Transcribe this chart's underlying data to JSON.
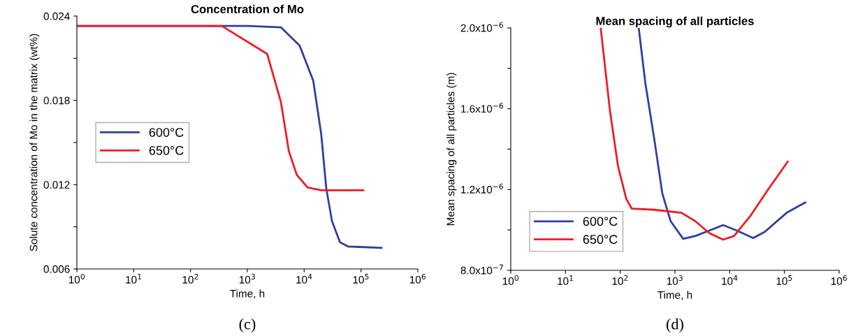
{
  "chart_data": [
    {
      "type": "line",
      "title": "Concentration of Mo",
      "xlabel": "Time, h",
      "ylabel": "Solute concentration of Mo in the matrix (wt%)",
      "log": "x",
      "xlim": [
        1,
        1000000
      ],
      "xticks": [
        {
          "value": 1,
          "label": "10$^{0}$"
        },
        {
          "value": 10,
          "label": "10$^{1}$"
        },
        {
          "value": 100,
          "label": "10$^{2}$"
        },
        {
          "value": 1000,
          "label": "10$^{3}$"
        },
        {
          "value": 10000,
          "label": "10$^{4}$"
        },
        {
          "value": 100000,
          "label": "10$^{5}$"
        },
        {
          "value": 1000000,
          "label": "10$^{6}$"
        }
      ],
      "ylim": [
        0.006,
        0.024
      ],
      "yticks": [
        {
          "value": 0.006,
          "label": "0.006"
        },
        {
          "value": 0.009,
          "label": null
        },
        {
          "value": 0.012,
          "label": "0.012"
        },
        {
          "value": 0.015,
          "label": null
        },
        {
          "value": 0.018,
          "label": "0.018"
        },
        {
          "value": 0.021,
          "label": null
        },
        {
          "value": 0.024,
          "label": "0.024"
        }
      ],
      "grid": false,
      "legend": "left",
      "marker": "none",
      "line_style": "solid",
      "series": [
        {
          "name": "600°C",
          "color": "#2e3f9e",
          "x": [
            1,
            1000,
            3890,
            8318,
            14450,
            19950,
            24550,
            30900,
            42660,
            58880,
            230000
          ],
          "values": [
            0.0233,
            0.0233,
            0.0232,
            0.0219,
            0.0194,
            0.0156,
            0.0117,
            0.0094,
            0.0079,
            0.0076,
            0.0075
          ]
        },
        {
          "name": "650°C",
          "color": "#ee1c25",
          "x": [
            1,
            355,
            2239,
            3890,
            5370,
            7413,
            11480,
            20000,
            110000
          ],
          "values": [
            0.0233,
            0.0233,
            0.0213,
            0.0179,
            0.0144,
            0.0127,
            0.0118,
            0.0116,
            0.0116
          ]
        }
      ],
      "annotations": [
        "(c)"
      ]
    },
    {
      "type": "line",
      "title": "Mean spacing of all particles",
      "xlabel": "Time, h",
      "ylabel": "Mean spacing of all particles (m)",
      "log": "x",
      "xlim": [
        1,
        1000000
      ],
      "xticks": [
        {
          "value": 1,
          "label": "10$^{0}$"
        },
        {
          "value": 10,
          "label": "10$^{1}$"
        },
        {
          "value": 100,
          "label": "10$^{2}$"
        },
        {
          "value": 1000,
          "label": "10$^{3}$"
        },
        {
          "value": 10000,
          "label": "10$^{4}$"
        },
        {
          "value": 100000,
          "label": "10$^{5}$"
        },
        {
          "value": 1000000,
          "label": "10$^{6}$"
        }
      ],
      "ylim": [
        8e-07,
        2e-06
      ],
      "yticks": [
        {
          "value": 8e-07,
          "label": "8.0x10$^{−7}$"
        },
        {
          "value": 1e-06,
          "label": null
        },
        {
          "value": 1.2e-06,
          "label": "1.2x10$^{−6}$"
        },
        {
          "value": 1.4e-06,
          "label": null
        },
        {
          "value": 1.6e-06,
          "label": "1.6x10$^{−6}$"
        },
        {
          "value": 1.8e-06,
          "label": null
        },
        {
          "value": 2e-06,
          "label": "2.0x10$^{−6}$"
        }
      ],
      "grid": false,
      "legend": "lower left",
      "marker": "none",
      "line_style": "solid",
      "series": [
        {
          "name": "600°C",
          "color": "#2e3f9e",
          "x": [
            218,
            288,
            417,
            589,
            832,
            1413,
            2344,
            4266,
            7586,
            13490,
            26920,
            43650,
            110000,
            240000
          ],
          "values": [
            2e-06,
            1.727e-06,
            1.454e-06,
            1.18e-06,
            1.044e-06,
            9.56e-07,
            9.7e-07,
            9.97e-07,
            1.024e-06,
            9.97e-07,
            9.6e-07,
            9.9e-07,
            1.085e-06,
            1.136e-06
          ]
        },
        {
          "name": "650°C",
          "color": "#ee1c25",
          "x": [
            44,
            65,
            91,
            129,
            162,
            417,
            1318,
            2344,
            4266,
            7586,
            12020,
            23990,
            48980,
            115000
          ],
          "values": [
            2e-06,
            1.59e-06,
            1.317e-06,
            1.154e-06,
            1.106e-06,
            1.1e-06,
            1.085e-06,
            1.044e-06,
            9.84e-07,
            9.52e-07,
            9.7e-07,
            1.07e-06,
            1.195e-06,
            1.338e-06
          ]
        }
      ],
      "annotations": [
        "(d)"
      ]
    }
  ]
}
